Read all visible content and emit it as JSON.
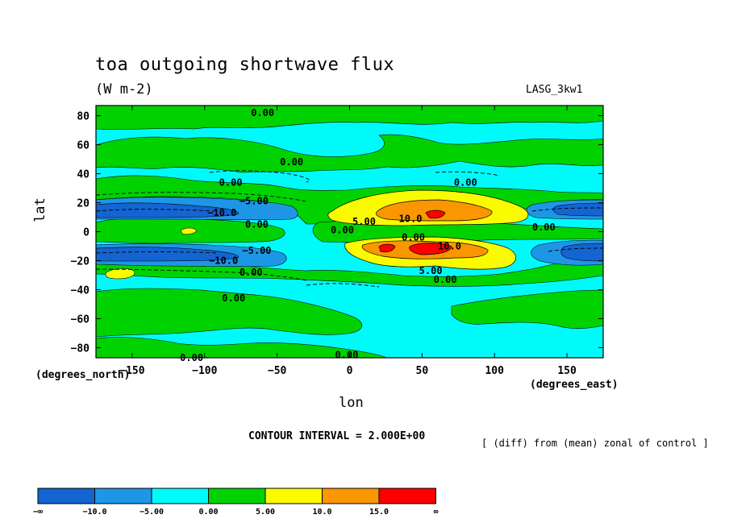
{
  "chart_data": {
    "type": "contour",
    "title": "toa outgoing shortwave flux",
    "units": "(W m-2)",
    "model": "LASG_3kw1",
    "xlabel": "lon",
    "ylabel": "lat",
    "x_units_label": "(degrees_east)",
    "y_units_label": "(degrees_north)",
    "xlim": [
      -175,
      175
    ],
    "ylim": [
      -87,
      87
    ],
    "x_ticks": [
      -150,
      -100,
      -50,
      0,
      50,
      100,
      150
    ],
    "x_tick_labels": [
      "−150",
      "−100",
      "−50",
      "0",
      "50",
      "100",
      "150"
    ],
    "y_ticks": [
      80,
      60,
      40,
      20,
      0,
      -20,
      -40,
      -60,
      -80
    ],
    "y_tick_labels": [
      "80",
      "60",
      "40",
      "20",
      "0",
      "−20",
      "−40",
      "−60",
      "−80"
    ],
    "contour_interval_label": "CONTOUR INTERVAL = 2.000E+00",
    "note": "[ (diff) from (mean) zonal of control ]",
    "colorbar": {
      "colors": [
        "#1464d2",
        "#1e96e6",
        "#00fafa",
        "#00d200",
        "#fafa00",
        "#fa9600",
        "#fa0000"
      ],
      "labels": [
        "−∞",
        "−10.0",
        "−5.00",
        "0.00",
        "5.00",
        "10.0",
        "15.0",
        "∞"
      ]
    },
    "contour_labels": [
      {
        "text": "0.00",
        "lon": -60,
        "lat": 82
      },
      {
        "text": "0.00",
        "lon": -40,
        "lat": 48
      },
      {
        "text": "0.00",
        "lon": -82,
        "lat": 34
      },
      {
        "text": "−5.00",
        "lon": -66,
        "lat": 21
      },
      {
        "text": "−10.0",
        "lon": -88,
        "lat": 13
      },
      {
        "text": "0.00",
        "lon": -64,
        "lat": 5
      },
      {
        "text": "0.00",
        "lon": -5,
        "lat": 1
      },
      {
        "text": "−5.00",
        "lon": -64,
        "lat": -13
      },
      {
        "text": "−10.0",
        "lon": -87,
        "lat": -20
      },
      {
        "text": "0.00",
        "lon": -68,
        "lat": -28
      },
      {
        "text": "0.00",
        "lon": 80,
        "lat": 34
      },
      {
        "text": "5.00",
        "lon": 10,
        "lat": 7
      },
      {
        "text": "10.0",
        "lon": 42,
        "lat": 9
      },
      {
        "text": "0.00",
        "lon": 44,
        "lat": -4
      },
      {
        "text": "10.0",
        "lon": 69,
        "lat": -10
      },
      {
        "text": "5.00",
        "lon": 56,
        "lat": -27
      },
      {
        "text": "0.00",
        "lon": 66,
        "lat": -33
      },
      {
        "text": "0.00",
        "lon": 134,
        "lat": 3
      },
      {
        "text": "0.00",
        "lon": -80,
        "lat": -46
      },
      {
        "text": "0.00",
        "lon": -109,
        "lat": -87
      },
      {
        "text": "0.00",
        "lon": -2,
        "lat": -85
      }
    ]
  }
}
